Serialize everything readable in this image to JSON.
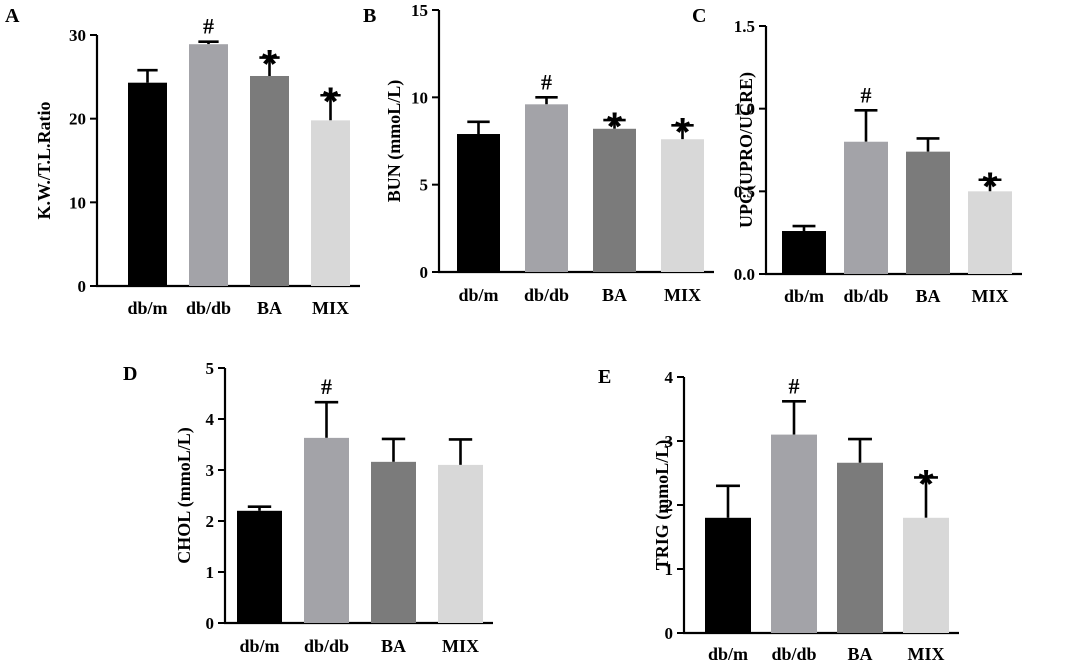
{
  "chart_data": [
    {
      "panel": "A",
      "type": "bar",
      "title": "",
      "xlabel": "",
      "ylabel": "K.W./T.L.Ratio",
      "ylim": [
        0,
        30
      ],
      "yticks": [
        0,
        10,
        20,
        30
      ],
      "categories": [
        "db/m",
        "db/db",
        "BA",
        "MIX"
      ],
      "values": [
        24.3,
        28.9,
        25.1,
        19.8
      ],
      "errors": [
        1.5,
        0.3,
        2.2,
        3.0
      ],
      "colors": [
        "#000000",
        "#a3a3a8",
        "#7b7b7b",
        "#d8d8d8"
      ],
      "annotations": [
        "",
        "#",
        "*",
        "*"
      ]
    },
    {
      "panel": "B",
      "type": "bar",
      "title": "",
      "xlabel": "",
      "ylabel": "BUN (mmoL/L)",
      "ylim": [
        0,
        15
      ],
      "yticks": [
        0,
        5,
        10,
        15
      ],
      "categories": [
        "db/m",
        "db/db",
        "BA",
        "MIX"
      ],
      "values": [
        7.9,
        9.6,
        8.2,
        7.6
      ],
      "errors": [
        0.7,
        0.4,
        0.5,
        0.8
      ],
      "colors": [
        "#000000",
        "#a3a3a8",
        "#7b7b7b",
        "#d8d8d8"
      ],
      "annotations": [
        "",
        "#",
        "*",
        "*"
      ]
    },
    {
      "panel": "C",
      "type": "bar",
      "title": "",
      "xlabel": "",
      "ylabel": "UPC(UPRO/UCRE)",
      "ylim": [
        0,
        1.5
      ],
      "yticks": [
        0.0,
        0.5,
        1.0,
        1.5
      ],
      "yticklabels": [
        "0.0",
        "0.5",
        "1.0",
        "1.5"
      ],
      "categories": [
        "db/m",
        "db/db",
        "BA",
        "MIX"
      ],
      "values": [
        0.26,
        0.8,
        0.74,
        0.5
      ],
      "errors": [
        0.03,
        0.19,
        0.08,
        0.07
      ],
      "colors": [
        "#000000",
        "#a3a3a8",
        "#7b7b7b",
        "#d8d8d8"
      ],
      "annotations": [
        "",
        "#",
        "",
        "*"
      ]
    },
    {
      "panel": "D",
      "type": "bar",
      "title": "",
      "xlabel": "",
      "ylabel": "CHOL (mmoL/L)",
      "ylim": [
        0,
        5
      ],
      "yticks": [
        0,
        1,
        2,
        3,
        4,
        5
      ],
      "categories": [
        "db/m",
        "db/db",
        "BA",
        "MIX"
      ],
      "values": [
        2.2,
        3.63,
        3.16,
        3.1
      ],
      "errors": [
        0.08,
        0.7,
        0.45,
        0.5
      ],
      "colors": [
        "#000000",
        "#a3a3a8",
        "#7b7b7b",
        "#d8d8d8"
      ],
      "annotations": [
        "",
        "#",
        "",
        ""
      ]
    },
    {
      "panel": "E",
      "type": "bar",
      "title": "",
      "xlabel": "",
      "ylabel": "TRIG (mmoL/L)",
      "ylim": [
        0,
        4
      ],
      "yticks": [
        0,
        1,
        2,
        3,
        4
      ],
      "categories": [
        "db/m",
        "db/db",
        "BA",
        "MIX"
      ],
      "values": [
        1.8,
        3.1,
        2.66,
        1.8
      ],
      "errors": [
        0.5,
        0.52,
        0.37,
        0.63
      ],
      "colors": [
        "#000000",
        "#a3a3a8",
        "#7b7b7b",
        "#d8d8d8"
      ],
      "annotations": [
        "",
        "#",
        "",
        "*"
      ]
    }
  ]
}
